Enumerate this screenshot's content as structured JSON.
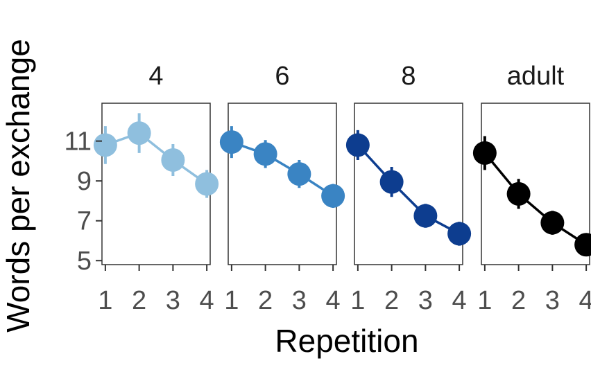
{
  "chart_data": {
    "type": "line",
    "xlabel": "Repetition",
    "ylabel": "Words per exchange",
    "x": [
      1,
      2,
      3,
      4
    ],
    "xticks": [
      "1",
      "2",
      "3",
      "4"
    ],
    "yticks": [
      5,
      7,
      9,
      11
    ],
    "ylim": [
      4.8,
      12.9
    ],
    "xlim": [
      0.9,
      4.1
    ],
    "grid": false,
    "error_bars": true,
    "panels": [
      {
        "title": "4",
        "color": "#8fbfde",
        "values": [
          10.8,
          11.4,
          10.05,
          8.85
        ],
        "err": [
          0.95,
          1.0,
          0.8,
          0.7
        ]
      },
      {
        "title": "6",
        "color": "#3a84c3",
        "values": [
          10.95,
          10.35,
          9.35,
          8.25
        ],
        "err": [
          0.8,
          0.7,
          0.7,
          0.6
        ]
      },
      {
        "title": "8",
        "color": "#0d3d8f",
        "values": [
          10.8,
          8.95,
          7.25,
          6.35
        ],
        "err": [
          0.75,
          0.75,
          0.6,
          0.6
        ]
      },
      {
        "title": "adult",
        "color": "#000000",
        "values": [
          10.4,
          8.35,
          6.9,
          5.8
        ],
        "err": [
          0.85,
          0.75,
          0.6,
          0.5
        ]
      }
    ]
  }
}
